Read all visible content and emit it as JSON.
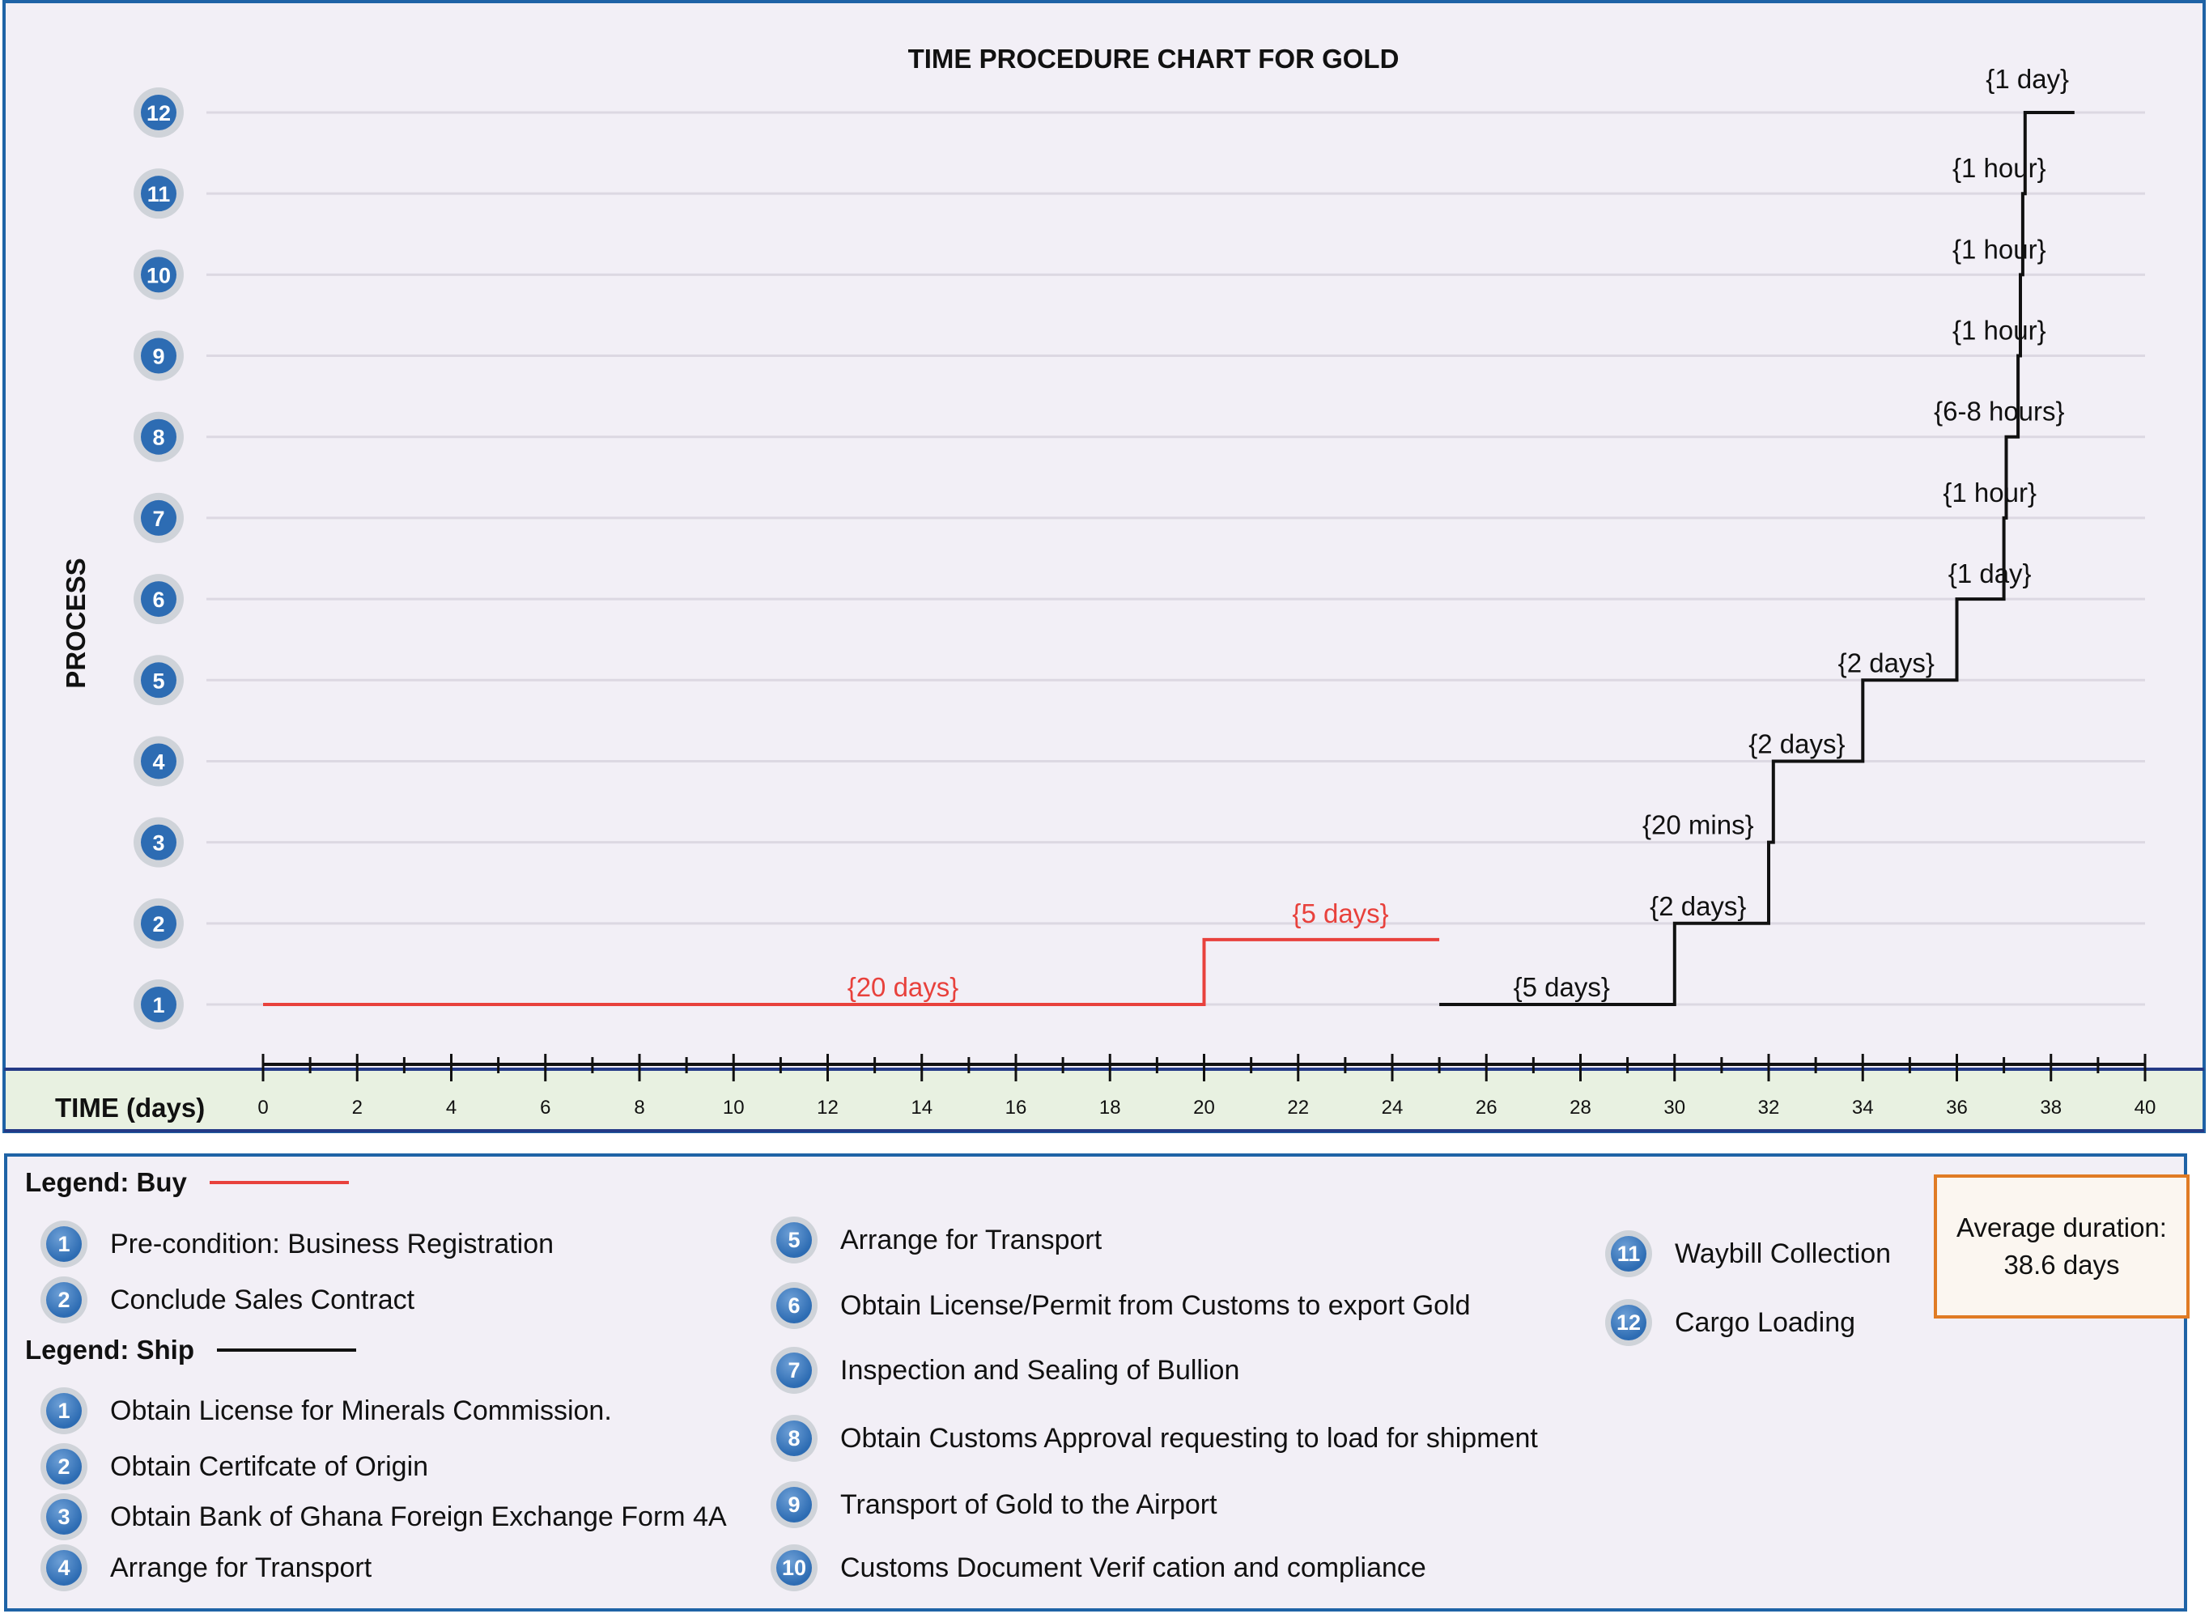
{
  "chart_data": {
    "type": "line",
    "title": "TIME PROCEDURE CHART FOR GOLD",
    "xlabel": "TIME (days)",
    "ylabel": "PROCESS",
    "xlim": [
      0,
      40
    ],
    "ylim": [
      1,
      12
    ],
    "x_ticks": [
      0,
      2,
      4,
      6,
      8,
      10,
      12,
      14,
      16,
      18,
      20,
      22,
      24,
      26,
      28,
      30,
      32,
      34,
      36,
      38,
      40
    ],
    "y_ticks": [
      1,
      2,
      3,
      4,
      5,
      6,
      7,
      8,
      9,
      10,
      11,
      12
    ],
    "grid": "horizontal",
    "series": [
      {
        "name": "Buy",
        "color": "#e8413c",
        "points": [
          [
            0,
            1
          ],
          [
            20,
            1
          ],
          [
            20,
            1.8
          ],
          [
            25,
            1.8
          ]
        ],
        "labels": [
          {
            "text": "{20 days}",
            "x": 13.6,
            "y": 1.1
          },
          {
            "text": "{5 days}",
            "x": 22.9,
            "y": 2.01
          }
        ]
      },
      {
        "name": "Ship",
        "color": "#111111",
        "points": [
          [
            25,
            1
          ],
          [
            30,
            1
          ],
          [
            30,
            2
          ],
          [
            32,
            2
          ],
          [
            32,
            3
          ],
          [
            32.1,
            3
          ],
          [
            32.1,
            4
          ],
          [
            34,
            4
          ],
          [
            34,
            5
          ],
          [
            36,
            5
          ],
          [
            36,
            6
          ],
          [
            37,
            6
          ],
          [
            37,
            7
          ],
          [
            37.05,
            7
          ],
          [
            37.05,
            8
          ],
          [
            37.3,
            8
          ],
          [
            37.3,
            9
          ],
          [
            37.35,
            9
          ],
          [
            37.35,
            10
          ],
          [
            37.4,
            10
          ],
          [
            37.4,
            11
          ],
          [
            37.45,
            11
          ],
          [
            37.45,
            12
          ],
          [
            38.5,
            12
          ]
        ],
        "labels": [
          {
            "text": "{5 days}",
            "x": 27.6,
            "y": 1.1
          },
          {
            "text": "{2 days}",
            "x": 30.5,
            "y": 2.1
          },
          {
            "text": "{20 mins}",
            "x": 30.5,
            "y": 3.1
          },
          {
            "text": "{2 days}",
            "x": 32.6,
            "y": 4.1
          },
          {
            "text": "{2 days}",
            "x": 34.5,
            "y": 5.1
          },
          {
            "text": "{1 day}",
            "x": 36.7,
            "y": 6.2
          },
          {
            "text": "{1 hour}",
            "x": 36.7,
            "y": 7.2
          },
          {
            "text": "{6-8 hours}",
            "x": 36.9,
            "y": 8.2
          },
          {
            "text": "{1 hour}",
            "x": 36.9,
            "y": 9.2
          },
          {
            "text": "{1 hour}",
            "x": 36.9,
            "y": 10.2
          },
          {
            "text": "{1 hour}",
            "x": 36.9,
            "y": 11.2
          },
          {
            "text": "{1 day}",
            "x": 37.5,
            "y": 12.3
          }
        ]
      }
    ]
  },
  "legend": {
    "buy_heading": "Legend: Buy",
    "ship_heading": "Legend: Ship",
    "buy_color": "#e8413c",
    "ship_color": "#111111",
    "buy_items": [
      {
        "num": "1",
        "label": "Pre-condition:  Business  Registration"
      },
      {
        "num": "2",
        "label": "Conclude Sales Contract"
      }
    ],
    "ship_items": [
      {
        "num": "1",
        "label": "Obtain License for Minerals Commission."
      },
      {
        "num": "2",
        "label": "Obtain  Certifcate of Origin"
      },
      {
        "num": "3",
        "label": "Obtain  Bank of Ghana Foreign Exchange Form 4A"
      },
      {
        "num": "4",
        "label": "Arrange for Transport"
      },
      {
        "num": "5",
        "label": "Arrange for Transport"
      },
      {
        "num": "6",
        "label": "Obtain License/Permit from Customs to export Gold"
      },
      {
        "num": "7",
        "label": "Inspection and Sealing of Bullion"
      },
      {
        "num": "8",
        "label": "Obtain Customs Approval requesting to load for shipment"
      },
      {
        "num": "9",
        "label": "Transport of Gold to the Airport"
      },
      {
        "num": "10",
        "label": "Customs Document Verif cation and compliance"
      },
      {
        "num": "11",
        "label": "Waybill Collection"
      },
      {
        "num": "12",
        "label": "Cargo Loading"
      }
    ]
  },
  "summary": {
    "line1": "Average duration:",
    "line2": "38.6 days"
  }
}
